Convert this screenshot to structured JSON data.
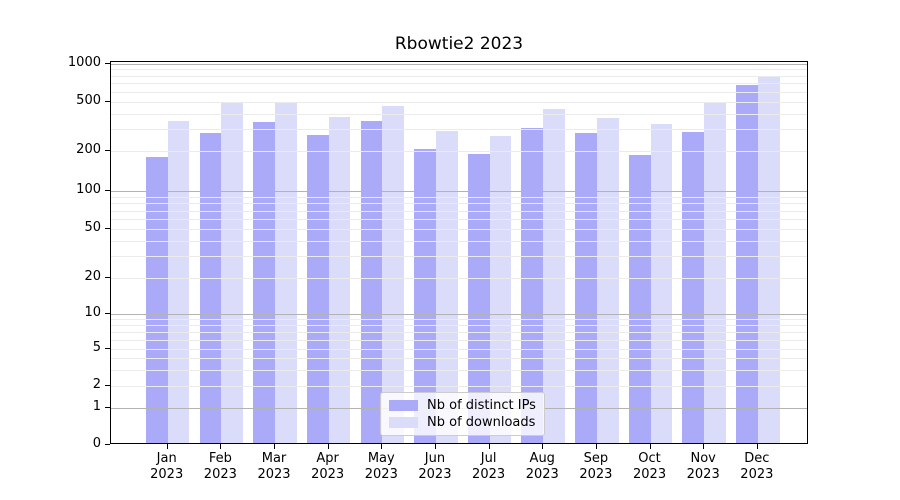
{
  "title": "Rbowtie2 2023",
  "colors": {
    "ips_bar": "#aaaaf8",
    "downloads_bar": "#dbdbfa",
    "grid_major": "#b3b3b3",
    "grid_minor": "#ebebeb",
    "spine": "#000000",
    "legend_border": "#cccccc"
  },
  "legend": {
    "items": [
      {
        "label": "Nb of distinct IPs",
        "series": "ips"
      },
      {
        "label": "Nb of downloads",
        "series": "downloads"
      }
    ]
  },
  "y_axis": {
    "tick_labels": [
      "1000",
      "500",
      "200",
      "100",
      "50",
      "20",
      "10",
      "5",
      "2",
      "1",
      "0"
    ]
  },
  "chart_data": {
    "type": "bar",
    "title": "Rbowtie2 2023",
    "categories": [
      "Jan 2023",
      "Feb 2023",
      "Mar 2023",
      "Apr 2023",
      "May 2023",
      "Jun 2023",
      "Jul 2023",
      "Aug 2023",
      "Sep 2023",
      "Oct 2023",
      "Nov 2023",
      "Dec 2023"
    ],
    "series": [
      {
        "name": "Nb of distinct IPs",
        "color": "#aaaaf8",
        "values": [
          175,
          270,
          330,
          260,
          340,
          200,
          185,
          295,
          270,
          180,
          275,
          650
        ]
      },
      {
        "name": "Nb of downloads",
        "color": "#dbdbfa",
        "values": [
          340,
          475,
          475,
          365,
          450,
          280,
          255,
          420,
          355,
          320,
          485,
          760
        ]
      }
    ],
    "xlabel": "",
    "ylabel": "",
    "yscale": "symlog",
    "ylim": [
      0,
      1000
    ],
    "y_ticks": [
      0,
      1,
      2,
      5,
      10,
      20,
      50,
      100,
      200,
      500,
      1000
    ],
    "grid": "on",
    "legend_position": "lower center"
  }
}
